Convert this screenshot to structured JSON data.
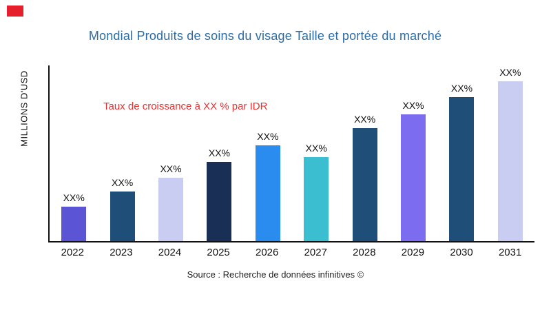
{
  "header": {
    "title": "Mondial Produits de soins du visage Taille et portée du marché"
  },
  "colors": {
    "title": "#2d6ba3",
    "annotation": "#e63232",
    "logo": "#e51f2b",
    "axis": "#111111"
  },
  "chart_data": {
    "type": "bar",
    "title": "Mondial Produits de soins du visage Taille et portée du marché",
    "ylabel": "MILLIONS D'USD",
    "xlabel": "",
    "annotation": "Taux de croissance à XX % par IDR",
    "source": "Source : Recherche de données infinitives ©",
    "categories": [
      "2022",
      "2023",
      "2024",
      "2025",
      "2026",
      "2027",
      "2028",
      "2029",
      "2030",
      "2031"
    ],
    "values": [
      50,
      72,
      92,
      115,
      139,
      122,
      164,
      184,
      209,
      232
    ],
    "value_note": "numeric axis values not printed on chart; bar value labels are placeholder XX%, heights are relative pixel estimates",
    "bar_labels": [
      "XX%",
      "XX%",
      "XX%",
      "XX%",
      "XX%",
      "XX%",
      "XX%",
      "XX%",
      "XX%",
      "XX%"
    ],
    "bar_colors": [
      "#5b55d6",
      "#1f4e79",
      "#c9cdf2",
      "#1a2f55",
      "#2b8cf0",
      "#3bbfd0",
      "#1f4e79",
      "#7b6cf0",
      "#1f4e79",
      "#c9cdf2"
    ],
    "grid": false,
    "legend_position": "none"
  }
}
